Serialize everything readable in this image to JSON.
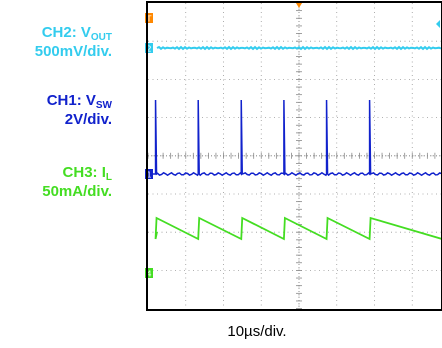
{
  "labels": [
    {
      "id": "ch2",
      "name": "CH2: V",
      "sub": "OUT",
      "scale": "500mV/div.",
      "color": "#33CCEE"
    },
    {
      "id": "ch1",
      "name": "CH1: V",
      "sub": "SW",
      "scale": "2V/div.",
      "color": "#1122CC"
    },
    {
      "id": "ch3",
      "name": "CH3: I",
      "sub": "L",
      "scale": "50mA/div.",
      "color": "#44DD22"
    }
  ],
  "markers": {
    "ch1": "1",
    "ch2": "2",
    "ch3": "4",
    "trigger": "T"
  },
  "chart_data": {
    "type": "line",
    "xlabel": "10µs/div.",
    "grid": true,
    "colors": {
      "ch2": "#33CCEE",
      "ch1": "#1122CC",
      "ch3": "#44DD22",
      "trigger": "#FF8800"
    },
    "series": [
      {
        "name": "CH2: VOUT",
        "trace": "flat dc level",
        "scale": "500mV/div."
      },
      {
        "name": "CH1: VSW",
        "trace": "switching spikes",
        "scale": "2V/div.",
        "spike_times_div": [
          0.2,
          1.33,
          2.47,
          3.6,
          4.73,
          5.87
        ]
      },
      {
        "name": "CH3: IL",
        "trace": "sawtooth",
        "scale": "50mA/div.",
        "period_div": 1.13
      }
    ]
  }
}
